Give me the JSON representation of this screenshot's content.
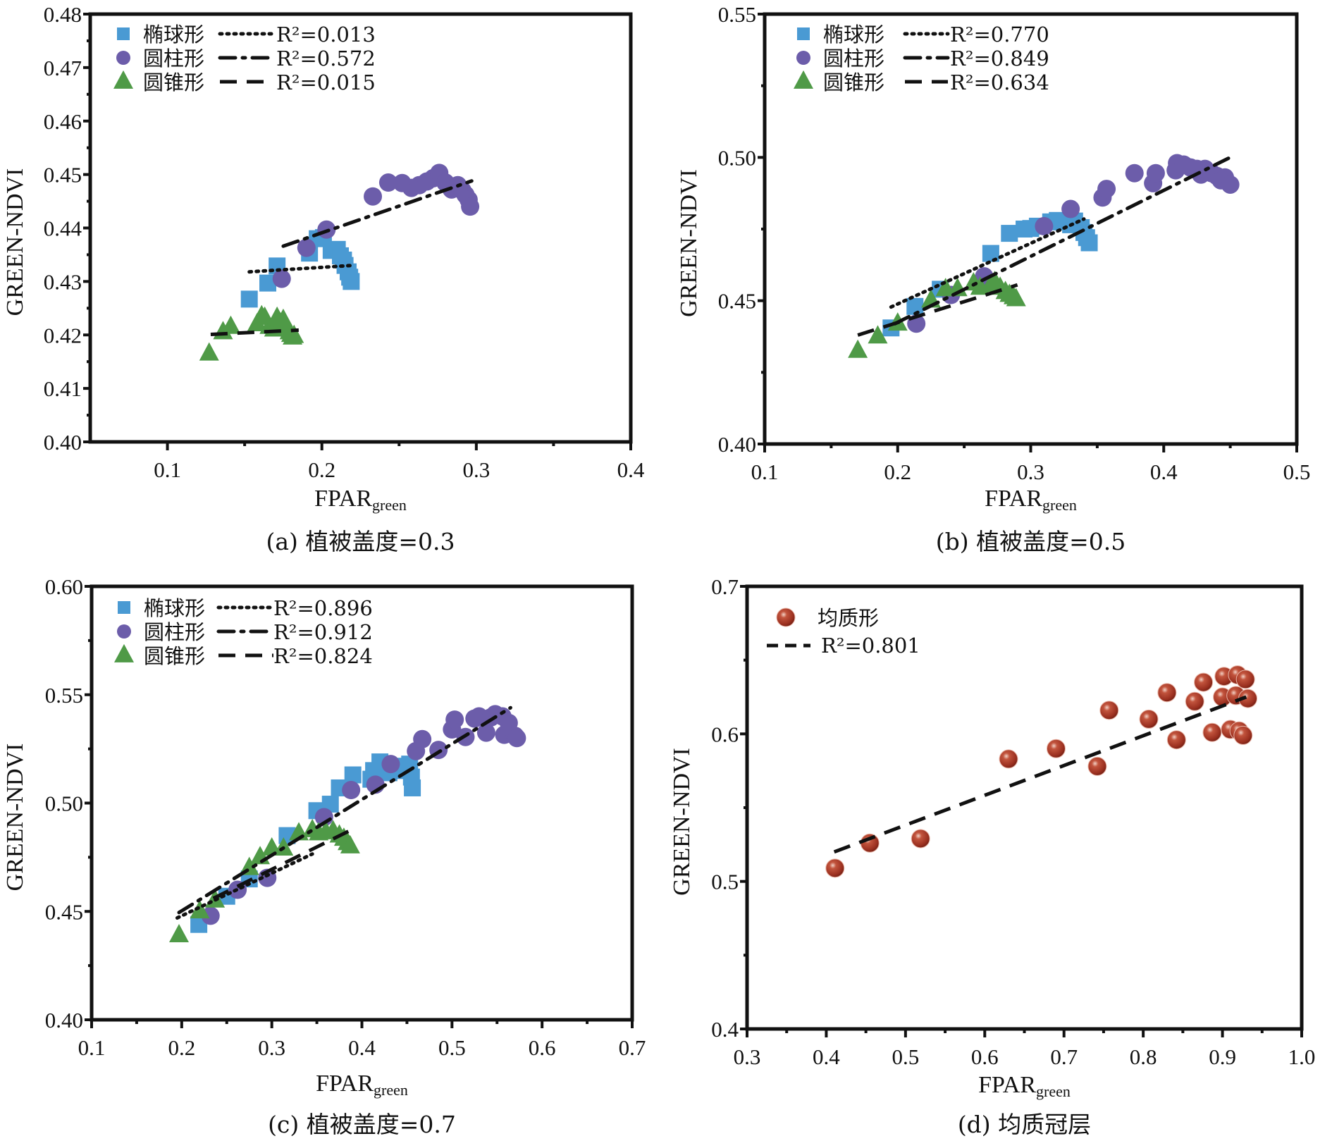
{
  "figure": {
    "colors": {
      "ellipsoid": "#4a9ad3",
      "cylinder": "#6c5daa",
      "cone": "#4f9a47",
      "homogeneous": "#a33a26",
      "axis": "#111111",
      "fit_line": "#111111"
    }
  },
  "chart_data": [
    {
      "id": "a",
      "type": "scatter",
      "caption": "(a) 植被盖度=0.3",
      "xlabel": "FPAR",
      "xlabel_sub": "green",
      "ylabel": "GREEN-NDVI",
      "xlim": [
        0.05,
        0.4
      ],
      "ylim": [
        0.4,
        0.48
      ],
      "xticks": [
        0.1,
        0.2,
        0.3,
        0.4
      ],
      "xtick_labels": [
        "0.1",
        "0.2",
        "0.3",
        "0.4"
      ],
      "yticks": [
        0.4,
        0.41,
        0.42,
        0.43,
        0.44,
        0.45,
        0.46,
        0.47,
        0.48
      ],
      "ytick_labels": [
        "0.40",
        "0.41",
        "0.42",
        "0.43",
        "0.44",
        "0.45",
        "0.46",
        "0.47",
        "0.48"
      ],
      "legend_position": "top-left",
      "series": [
        {
          "name": "椭球形",
          "marker": "square",
          "color_key": "ellipsoid",
          "line_style": "dotted",
          "r2_label": "R²=0.013",
          "points": [
            [
              0.153,
              0.4267
            ],
            [
              0.165,
              0.4297
            ],
            [
              0.171,
              0.4329
            ],
            [
              0.192,
              0.4353
            ],
            [
              0.197,
              0.438
            ],
            [
              0.201,
              0.4382
            ],
            [
              0.206,
              0.4358
            ],
            [
              0.21,
              0.436
            ],
            [
              0.212,
              0.4348
            ],
            [
              0.214,
              0.434
            ],
            [
              0.215,
              0.433
            ],
            [
              0.217,
              0.4318
            ],
            [
              0.218,
              0.4308
            ],
            [
              0.219,
              0.43
            ]
          ],
          "fit": [
            [
              0.153,
              0.4318
            ],
            [
              0.22,
              0.433
            ]
          ]
        },
        {
          "name": "圆柱形",
          "marker": "circle",
          "color_key": "cylinder",
          "line_style": "dashdot",
          "r2_label": "R²=0.572",
          "points": [
            [
              0.174,
              0.4305
            ],
            [
              0.19,
              0.4363
            ],
            [
              0.203,
              0.4397
            ],
            [
              0.233,
              0.4459
            ],
            [
              0.243,
              0.4485
            ],
            [
              0.252,
              0.4484
            ],
            [
              0.258,
              0.4475
            ],
            [
              0.263,
              0.448
            ],
            [
              0.268,
              0.4487
            ],
            [
              0.272,
              0.4493
            ],
            [
              0.276,
              0.4503
            ],
            [
              0.28,
              0.4485
            ],
            [
              0.284,
              0.4472
            ],
            [
              0.288,
              0.448
            ],
            [
              0.291,
              0.447
            ],
            [
              0.293,
              0.4462
            ],
            [
              0.295,
              0.4453
            ],
            [
              0.296,
              0.444
            ]
          ],
          "fit": [
            [
              0.175,
              0.4366
            ],
            [
              0.297,
              0.4488
            ]
          ]
        },
        {
          "name": "圆锥形",
          "marker": "triangle",
          "color_key": "cone",
          "line_style": "dashed",
          "r2_label": "R²=0.015",
          "points": [
            [
              0.127,
              0.4165
            ],
            [
              0.136,
              0.4205
            ],
            [
              0.141,
              0.4215
            ],
            [
              0.158,
              0.422
            ],
            [
              0.161,
              0.4235
            ],
            [
              0.163,
              0.4232
            ],
            [
              0.166,
              0.4215
            ],
            [
              0.169,
              0.421
            ],
            [
              0.171,
              0.4232
            ],
            [
              0.173,
              0.4222
            ],
            [
              0.175,
              0.4228
            ],
            [
              0.177,
              0.4215
            ],
            [
              0.179,
              0.4205
            ],
            [
              0.18,
              0.42
            ],
            [
              0.181,
              0.4195
            ],
            [
              0.182,
              0.4198
            ]
          ],
          "fit": [
            [
              0.128,
              0.4201
            ],
            [
              0.185,
              0.4209
            ]
          ]
        }
      ]
    },
    {
      "id": "b",
      "type": "scatter",
      "caption": "(b) 植被盖度=0.5",
      "xlabel": "FPAR",
      "xlabel_sub": "green",
      "ylabel": "GREEN-NDVI",
      "xlim": [
        0.1,
        0.5
      ],
      "ylim": [
        0.4,
        0.55
      ],
      "xticks": [
        0.1,
        0.2,
        0.3,
        0.4,
        0.5
      ],
      "xtick_labels": [
        "0.1",
        "0.2",
        "0.3",
        "0.4",
        "0.5"
      ],
      "yticks": [
        0.4,
        0.45,
        0.5,
        0.55
      ],
      "ytick_labels": [
        "0.40",
        "0.45",
        "0.50",
        "0.55"
      ],
      "legend_position": "top-left",
      "series": [
        {
          "name": "椭球形",
          "marker": "square",
          "color_key": "ellipsoid",
          "line_style": "dotted",
          "r2_label": "R²=0.770",
          "points": [
            [
              0.195,
              0.4405
            ],
            [
              0.213,
              0.448
            ],
            [
              0.232,
              0.454
            ],
            [
              0.27,
              0.4665
            ],
            [
              0.284,
              0.4735
            ],
            [
              0.295,
              0.475
            ],
            [
              0.3,
              0.4752
            ],
            [
              0.305,
              0.476
            ],
            [
              0.315,
              0.4775
            ],
            [
              0.32,
              0.478
            ],
            [
              0.325,
              0.4775
            ],
            [
              0.33,
              0.4765
            ],
            [
              0.333,
              0.4778
            ],
            [
              0.338,
              0.4755
            ],
            [
              0.34,
              0.4738
            ],
            [
              0.342,
              0.472
            ],
            [
              0.344,
              0.4702
            ]
          ],
          "fit": [
            [
              0.195,
              0.4478
            ],
            [
              0.34,
              0.4785
            ]
          ]
        },
        {
          "name": "圆柱形",
          "marker": "circle",
          "color_key": "cylinder",
          "line_style": "dashdot",
          "r2_label": "R²=0.849",
          "points": [
            [
              0.214,
              0.442
            ],
            [
              0.24,
              0.452
            ],
            [
              0.265,
              0.4585
            ],
            [
              0.31,
              0.476
            ],
            [
              0.33,
              0.482
            ],
            [
              0.354,
              0.486
            ],
            [
              0.357,
              0.489
            ],
            [
              0.378,
              0.4945
            ],
            [
              0.392,
              0.491
            ],
            [
              0.394,
              0.4945
            ],
            [
              0.409,
              0.4955
            ],
            [
              0.41,
              0.498
            ],
            [
              0.415,
              0.4975
            ],
            [
              0.42,
              0.4965
            ],
            [
              0.425,
              0.496
            ],
            [
              0.428,
              0.494
            ],
            [
              0.431,
              0.496
            ],
            [
              0.436,
              0.4945
            ],
            [
              0.44,
              0.4935
            ],
            [
              0.443,
              0.492
            ],
            [
              0.446,
              0.493
            ],
            [
              0.45,
              0.4905
            ]
          ],
          "fit": [
            [
              0.198,
              0.442
            ],
            [
              0.45,
              0.5
            ]
          ]
        },
        {
          "name": "圆锥形",
          "marker": "triangle",
          "color_key": "cone",
          "line_style": "dashed",
          "r2_label": "R²=0.634",
          "points": [
            [
              0.17,
              0.4325
            ],
            [
              0.185,
              0.4375
            ],
            [
              0.2,
              0.442
            ],
            [
              0.225,
              0.45
            ],
            [
              0.236,
              0.454
            ],
            [
              0.245,
              0.454
            ],
            [
              0.257,
              0.456
            ],
            [
              0.262,
              0.4545
            ],
            [
              0.27,
              0.4555
            ],
            [
              0.273,
              0.4565
            ],
            [
              0.277,
              0.4545
            ],
            [
              0.281,
              0.453
            ],
            [
              0.284,
              0.452
            ],
            [
              0.287,
              0.4512
            ],
            [
              0.289,
              0.4505
            ]
          ],
          "fit": [
            [
              0.17,
              0.438
            ],
            [
              0.29,
              0.4555
            ]
          ]
        }
      ]
    },
    {
      "id": "c",
      "type": "scatter",
      "caption": "(c) 植被盖度=0.7",
      "xlabel": "FPAR",
      "xlabel_sub": "green",
      "ylabel": "GREEN-NDVI",
      "xlim": [
        0.1,
        0.7
      ],
      "ylim": [
        0.4,
        0.6
      ],
      "xticks": [
        0.1,
        0.2,
        0.3,
        0.4,
        0.5,
        0.6,
        0.7
      ],
      "xtick_labels": [
        "0.1",
        "0.2",
        "0.3",
        "0.4",
        "0.5",
        "0.6",
        "0.7"
      ],
      "yticks": [
        0.4,
        0.45,
        0.5,
        0.55,
        0.6
      ],
      "ytick_labels": [
        "0.40",
        "0.45",
        "0.50",
        "0.55",
        "0.60"
      ],
      "legend_position": "top-left",
      "series": [
        {
          "name": "椭球形",
          "marker": "square",
          "color_key": "ellipsoid",
          "line_style": "dotted",
          "r2_label": "R²=0.896",
          "points": [
            [
              0.219,
              0.444
            ],
            [
              0.25,
              0.457
            ],
            [
              0.275,
              0.465
            ],
            [
              0.317,
              0.485
            ],
            [
              0.35,
              0.4965
            ],
            [
              0.365,
              0.4995
            ],
            [
              0.375,
              0.507
            ],
            [
              0.39,
              0.513
            ],
            [
              0.41,
              0.511
            ],
            [
              0.413,
              0.515
            ],
            [
              0.42,
              0.519
            ],
            [
              0.43,
              0.514
            ],
            [
              0.44,
              0.517
            ],
            [
              0.448,
              0.515
            ],
            [
              0.453,
              0.518
            ],
            [
              0.455,
              0.512
            ],
            [
              0.456,
              0.507
            ]
          ],
          "fit": [
            [
              0.195,
              0.447
            ],
            [
              0.345,
              0.4765
            ]
          ]
        },
        {
          "name": "圆柱形",
          "marker": "circle",
          "color_key": "cylinder",
          "line_style": "dashdot",
          "r2_label": "R²=0.912",
          "points": [
            [
              0.232,
              0.448
            ],
            [
              0.262,
              0.46
            ],
            [
              0.295,
              0.4655
            ],
            [
              0.358,
              0.4935
            ],
            [
              0.388,
              0.506
            ],
            [
              0.415,
              0.5085
            ],
            [
              0.432,
              0.518
            ],
            [
              0.46,
              0.524
            ],
            [
              0.467,
              0.5295
            ],
            [
              0.485,
              0.5245
            ],
            [
              0.5,
              0.534
            ],
            [
              0.503,
              0.5385
            ],
            [
              0.515,
              0.5305
            ],
            [
              0.525,
              0.539
            ],
            [
              0.53,
              0.54
            ],
            [
              0.538,
              0.5325
            ],
            [
              0.543,
              0.5395
            ],
            [
              0.548,
              0.541
            ],
            [
              0.556,
              0.54
            ],
            [
              0.558,
              0.5315
            ],
            [
              0.563,
              0.537
            ],
            [
              0.57,
              0.531
            ],
            [
              0.572,
              0.53
            ]
          ],
          "fit": [
            [
              0.197,
              0.4495
            ],
            [
              0.565,
              0.544
            ]
          ]
        },
        {
          "name": "圆锥形",
          "marker": "triangle",
          "color_key": "cone",
          "line_style": "dashed",
          "r2_label": "R²=0.824",
          "points": [
            [
              0.197,
              0.439
            ],
            [
              0.22,
              0.45
            ],
            [
              0.237,
              0.455
            ],
            [
              0.275,
              0.47
            ],
            [
              0.287,
              0.475
            ],
            [
              0.3,
              0.479
            ],
            [
              0.313,
              0.479
            ],
            [
              0.33,
              0.486
            ],
            [
              0.345,
              0.4875
            ],
            [
              0.352,
              0.486
            ],
            [
              0.36,
              0.4865
            ],
            [
              0.368,
              0.487
            ],
            [
              0.375,
              0.485
            ],
            [
              0.38,
              0.4835
            ],
            [
              0.384,
              0.4815
            ],
            [
              0.387,
              0.48
            ]
          ],
          "fit": [
            [
              0.235,
              0.456
            ],
            [
              0.39,
              0.488
            ]
          ]
        }
      ]
    },
    {
      "id": "d",
      "type": "scatter",
      "caption": "(d) 均质冠层",
      "xlabel": "FPAR",
      "xlabel_sub": "green",
      "ylabel": "GREEN-NDVI",
      "xlim": [
        0.3,
        1.0
      ],
      "ylim": [
        0.4,
        0.7
      ],
      "xticks": [
        0.3,
        0.4,
        0.5,
        0.6,
        0.7,
        0.8,
        0.9,
        1.0
      ],
      "xtick_labels": [
        "0.3",
        "0.4",
        "0.5",
        "0.6",
        "0.7",
        "0.8",
        "0.9",
        "1.0"
      ],
      "yticks": [
        0.4,
        0.5,
        0.6,
        0.7
      ],
      "ytick_labels": [
        "0.4",
        "0.5",
        "0.6",
        "0.7"
      ],
      "legend_position": "top-left",
      "series": [
        {
          "name": "均质形",
          "marker": "sphere",
          "color_key": "homogeneous",
          "line_style": "dashed",
          "r2_label": "R²=0.801",
          "points": [
            [
              0.411,
              0.509
            ],
            [
              0.455,
              0.526
            ],
            [
              0.519,
              0.529
            ],
            [
              0.63,
              0.583
            ],
            [
              0.69,
              0.59
            ],
            [
              0.742,
              0.578
            ],
            [
              0.757,
              0.616
            ],
            [
              0.807,
              0.61
            ],
            [
              0.83,
              0.628
            ],
            [
              0.842,
              0.596
            ],
            [
              0.865,
              0.622
            ],
            [
              0.876,
              0.635
            ],
            [
              0.887,
              0.601
            ],
            [
              0.9,
              0.625
            ],
            [
              0.902,
              0.639
            ],
            [
              0.91,
              0.603
            ],
            [
              0.917,
              0.626
            ],
            [
              0.919,
              0.64
            ],
            [
              0.921,
              0.602
            ],
            [
              0.926,
              0.599
            ],
            [
              0.929,
              0.637
            ],
            [
              0.932,
              0.624
            ]
          ],
          "fit": [
            [
              0.41,
              0.52
            ],
            [
              0.93,
              0.625
            ]
          ]
        }
      ]
    }
  ]
}
